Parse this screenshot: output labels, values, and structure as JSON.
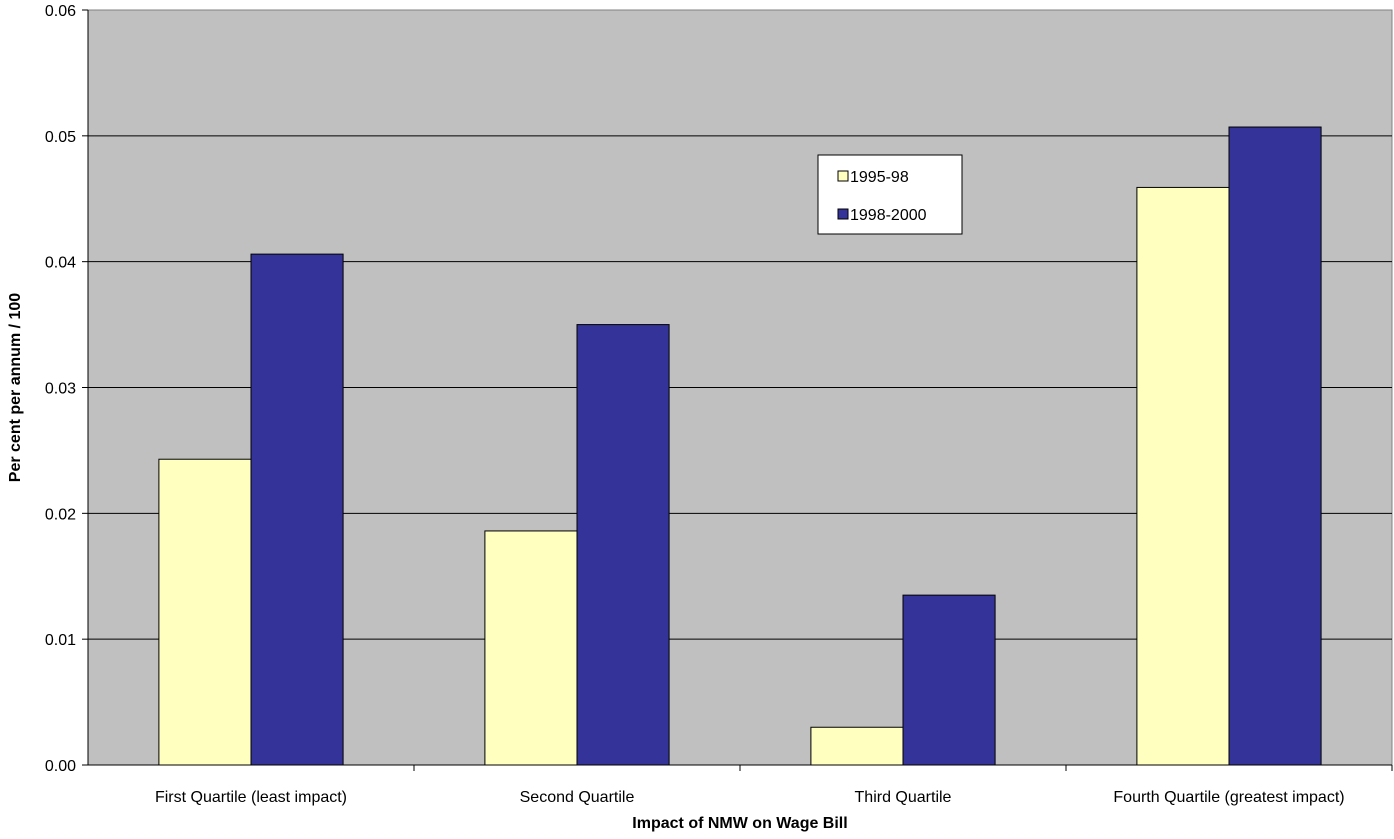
{
  "chart_data": {
    "type": "bar",
    "title": "",
    "xlabel": "Impact of NMW on Wage Bill",
    "ylabel": "Per cent per annum / 100",
    "categories": [
      "First Quartile (least impact)",
      "Second Quartile",
      "Third Quartile",
      "Fourth Quartile (greatest impact)"
    ],
    "series": [
      {
        "name": "1995-98",
        "values": [
          0.0243,
          0.0186,
          0.003,
          0.0459
        ],
        "color": "#ffffc0"
      },
      {
        "name": "1998-2000",
        "values": [
          0.0406,
          0.035,
          0.0135,
          0.0507
        ],
        "color": "#333399"
      }
    ],
    "ylim": [
      0,
      0.06
    ],
    "yticks": [
      "0.00",
      "0.01",
      "0.02",
      "0.03",
      "0.04",
      "0.05",
      "0.06"
    ],
    "grid": true,
    "plot_background": "#c0c0c0",
    "legend_position": "top-center-right"
  }
}
